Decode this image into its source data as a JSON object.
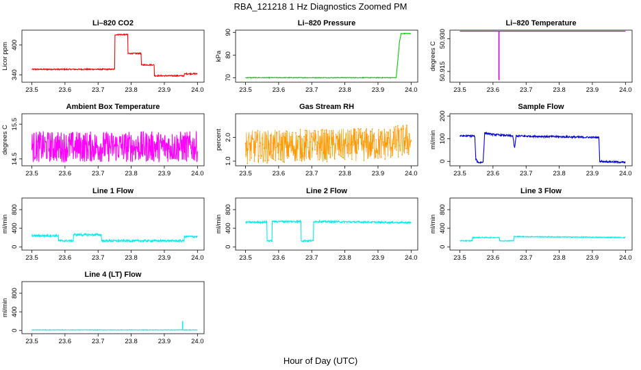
{
  "figure": {
    "title": "RBA_121218  1 Hz Diagnostics Zoomed PM",
    "xlabel": "Hour of Day (UTC)"
  },
  "chart_data": [
    {
      "type": "line",
      "title": "Li–820 CO2",
      "ylabel": "Licor ppm",
      "color": "#ff0000",
      "xlim": [
        23.47,
        24.02
      ],
      "ylim": [
        325,
        430
      ],
      "xticks": [
        "23.5",
        "23.6",
        "23.7",
        "23.8",
        "23.9",
        "24.0"
      ],
      "yticks": [
        "340",
        "400"
      ],
      "segments": [
        [
          23.5,
          351
        ],
        [
          23.75,
          351
        ],
        [
          23.75,
          421
        ],
        [
          23.79,
          421
        ],
        [
          23.79,
          383
        ],
        [
          23.83,
          383
        ],
        [
          23.83,
          360
        ],
        [
          23.87,
          360
        ],
        [
          23.87,
          338
        ],
        [
          23.96,
          338
        ],
        [
          23.96,
          342
        ],
        [
          24.0,
          342
        ]
      ],
      "noise": 1.2,
      "marker": false
    },
    {
      "type": "line",
      "title": "Li–820 Pressure",
      "ylabel": "kPa",
      "color": "#00cc00",
      "xlim": [
        23.47,
        24.02
      ],
      "ylim": [
        68,
        91
      ],
      "xticks": [
        "23.5",
        "23.6",
        "23.7",
        "23.8",
        "23.9",
        "24.0"
      ],
      "yticks": [
        "70",
        "80",
        "90"
      ],
      "segments": [
        [
          23.5,
          70.0
        ],
        [
          23.955,
          70.0
        ],
        [
          23.96,
          78
        ],
        [
          23.965,
          86
        ],
        [
          23.97,
          89.5
        ],
        [
          24.0,
          89.5
        ]
      ],
      "noise": 0.15,
      "marker": false
    },
    {
      "type": "line",
      "title": "Li–820 Temperature",
      "ylabel": "degrees C",
      "color": "#cc00cc",
      "xlim": [
        23.47,
        24.02
      ],
      "ylim": [
        50.91,
        50.934
      ],
      "xticks": [
        "23.5",
        "23.6",
        "23.7",
        "23.8",
        "23.9",
        "24.0"
      ],
      "yticks": [
        "50.915",
        "50.930"
      ],
      "segments": [
        [
          23.5,
          50.9335
        ],
        [
          24.0,
          50.9335
        ]
      ],
      "spikes": [
        [
          23.618,
          50.911
        ]
      ],
      "noise": 0.0,
      "marker": false
    },
    {
      "type": "line",
      "title": "Ambient Box Temperature",
      "ylabel": "degrees C",
      "color": "#ff00ff",
      "xlim": [
        23.47,
        24.02
      ],
      "ylim": [
        14.3,
        15.8
      ],
      "xticks": [
        "23.5",
        "23.6",
        "23.7",
        "23.8",
        "23.9",
        "24.0"
      ],
      "yticks": [
        "14.5",
        "15.5"
      ],
      "segments": [
        [
          23.5,
          14.85
        ],
        [
          24.0,
          14.85
        ]
      ],
      "noise": 0.45,
      "marker": false
    },
    {
      "type": "line",
      "title": "Gas Stream RH",
      "ylabel": "percent",
      "color": "#ff9900",
      "xlim": [
        23.47,
        24.02
      ],
      "ylim": [
        0.8,
        3.0
      ],
      "xticks": [
        "23.5",
        "23.6",
        "23.7",
        "23.8",
        "23.9",
        "24.0"
      ],
      "yticks": [
        "1.0",
        "2.0"
      ],
      "segments": [
        [
          23.5,
          1.6
        ],
        [
          23.9,
          1.7
        ],
        [
          24.0,
          1.9
        ]
      ],
      "noise": 0.7,
      "marker": true
    },
    {
      "type": "line",
      "title": "Sample Flow",
      "ylabel": "ml/min",
      "color": "#0000dd",
      "xlim": [
        23.47,
        24.02
      ],
      "ylim": [
        -20,
        210
      ],
      "xticks": [
        "23.5",
        "23.6",
        "23.7",
        "23.8",
        "23.9",
        "24.0"
      ],
      "yticks": [
        "0",
        "100",
        "200"
      ],
      "segments": [
        [
          23.5,
          112
        ],
        [
          23.545,
          112
        ],
        [
          23.548,
          10
        ],
        [
          23.555,
          -5
        ],
        [
          23.57,
          -5
        ],
        [
          23.575,
          125
        ],
        [
          23.6,
          118
        ],
        [
          23.66,
          112
        ],
        [
          23.665,
          55
        ],
        [
          23.67,
          112
        ],
        [
          23.92,
          105
        ],
        [
          23.922,
          0
        ],
        [
          24.0,
          -5
        ]
      ],
      "noise": 4.0,
      "marker": false
    },
    {
      "type": "line",
      "title": "Line 1 Flow",
      "ylabel": "ml/min",
      "color": "#00eeee",
      "xlim": [
        23.47,
        24.02
      ],
      "ylim": [
        -70,
        1050
      ],
      "xticks": [
        "23.5",
        "23.6",
        "23.7",
        "23.8",
        "23.9",
        "24.0"
      ],
      "yticks": [
        "0",
        "400",
        "800"
      ],
      "segments": [
        [
          23.5,
          240
        ],
        [
          23.58,
          240
        ],
        [
          23.58,
          130
        ],
        [
          23.625,
          130
        ],
        [
          23.625,
          260
        ],
        [
          23.71,
          260
        ],
        [
          23.71,
          130
        ],
        [
          23.96,
          130
        ],
        [
          23.96,
          220
        ],
        [
          24.0,
          220
        ]
      ],
      "noise": 22,
      "marker": false
    },
    {
      "type": "line",
      "title": "Line 2 Flow",
      "ylabel": "ml/min",
      "color": "#00eeee",
      "xlim": [
        23.47,
        24.02
      ],
      "ylim": [
        -70,
        1050
      ],
      "xticks": [
        "23.5",
        "23.6",
        "23.7",
        "23.8",
        "23.9",
        "24.0"
      ],
      "yticks": [
        "0",
        "400",
        "800"
      ],
      "segments": [
        [
          23.5,
          530
        ],
        [
          23.565,
          530
        ],
        [
          23.565,
          130
        ],
        [
          23.58,
          130
        ],
        [
          23.58,
          545
        ],
        [
          23.668,
          545
        ],
        [
          23.668,
          130
        ],
        [
          23.705,
          130
        ],
        [
          23.705,
          545
        ],
        [
          24.0,
          520
        ]
      ],
      "noise": 18,
      "marker": false
    },
    {
      "type": "line",
      "title": "Line 3 Flow",
      "ylabel": "ml/min",
      "color": "#00eeee",
      "xlim": [
        23.47,
        24.02
      ],
      "ylim": [
        -70,
        1050
      ],
      "xticks": [
        "23.5",
        "23.6",
        "23.7",
        "23.8",
        "23.9",
        "24.0"
      ],
      "yticks": [
        "0",
        "400",
        "800"
      ],
      "segments": [
        [
          23.5,
          130
        ],
        [
          23.538,
          130
        ],
        [
          23.538,
          200
        ],
        [
          23.62,
          200
        ],
        [
          23.62,
          130
        ],
        [
          23.663,
          130
        ],
        [
          23.663,
          220
        ],
        [
          24.0,
          200
        ]
      ],
      "noise": 10,
      "marker": false
    },
    {
      "type": "line",
      "title": "Line 4 (LT) Flow",
      "ylabel": "ml/min",
      "color": "#00eeee",
      "xlim": [
        23.47,
        24.02
      ],
      "ylim": [
        -70,
        1050
      ],
      "xticks": [
        "23.5",
        "23.6",
        "23.7",
        "23.8",
        "23.9",
        "24.0"
      ],
      "yticks": [
        "0",
        "400",
        "800"
      ],
      "segments": [
        [
          23.5,
          10
        ],
        [
          24.0,
          10
        ]
      ],
      "spikes": [
        [
          23.955,
          200
        ]
      ],
      "noise": 6,
      "marker": false
    }
  ]
}
